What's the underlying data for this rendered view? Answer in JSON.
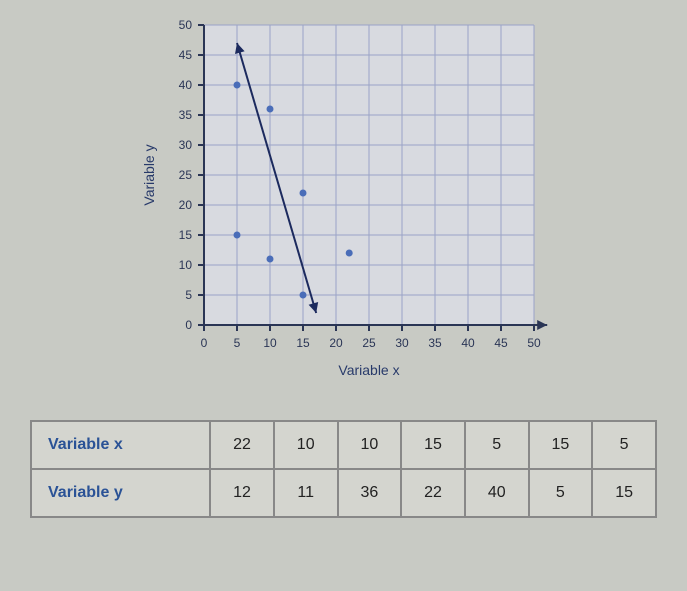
{
  "chart": {
    "type": "scatter",
    "xlabel": "Variable x",
    "ylabel": "Variable y",
    "label_fontsize": 14,
    "label_color": "#283a6a",
    "xlim": [
      0,
      50
    ],
    "ylim": [
      0,
      50
    ],
    "xtick_step": 5,
    "ytick_step": 5,
    "xticks": [
      0,
      5,
      10,
      15,
      20,
      25,
      30,
      35,
      40,
      45,
      50
    ],
    "yticks": [
      0,
      5,
      10,
      15,
      20,
      25,
      30,
      35,
      40,
      45,
      50
    ],
    "tick_fontsize": 12,
    "tick_color": "#2a3555",
    "grid_color": "#9aa3c7",
    "background_color": "#d0d2cc",
    "plot_bg_color": "#d8dae0",
    "point_color": "#4a6db8",
    "point_radius": 3.5,
    "points": [
      {
        "x": 22,
        "y": 12
      },
      {
        "x": 10,
        "y": 11
      },
      {
        "x": 10,
        "y": 36
      },
      {
        "x": 15,
        "y": 22
      },
      {
        "x": 5,
        "y": 40
      },
      {
        "x": 15,
        "y": 5
      },
      {
        "x": 5,
        "y": 15
      }
    ],
    "trend_line": {
      "color": "#1c2a5e",
      "width": 2,
      "start": {
        "x": 5,
        "y": 47
      },
      "end": {
        "x": 17,
        "y": 2
      },
      "arrowheads": true
    },
    "axis_arrow": {
      "x_end": {
        "x": 52,
        "y": 0
      }
    }
  },
  "table": {
    "row_header_x": "Variable x",
    "row_header_y": "Variable y",
    "x_values": [
      "22",
      "10",
      "10",
      "15",
      "5",
      "15",
      "5"
    ],
    "y_values": [
      "12",
      "11",
      "36",
      "22",
      "40",
      "5",
      "15"
    ]
  }
}
